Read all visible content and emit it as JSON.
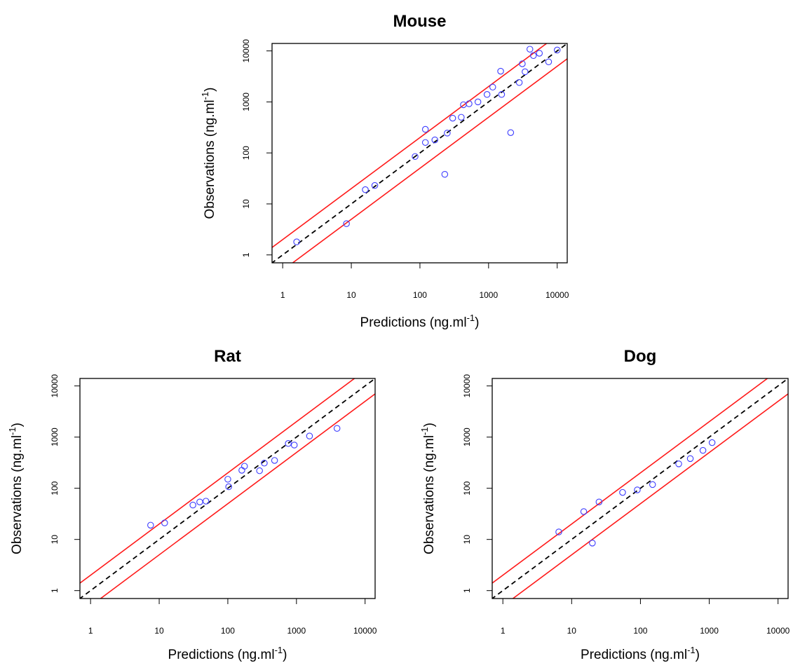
{
  "colors": {
    "points": "#3c3cff",
    "bands": "#ff1a1a",
    "identity": "#000000"
  },
  "chart_data": [
    {
      "type": "scatter",
      "title": "Mouse",
      "xlabel": "Predictions (ng.ml",
      "ylabel": "Observations (ng.ml",
      "unit_exponent": "-1",
      "xlabel_close": ")",
      "ylabel_close": ")",
      "xscale": "log",
      "yscale": "log",
      "xlim": [
        0.7,
        14000
      ],
      "ylim": [
        0.7,
        14000
      ],
      "xticks": [
        1,
        10,
        100,
        1000,
        10000
      ],
      "yticks": [
        1,
        10,
        100,
        1000,
        10000
      ],
      "tick_labels": [
        "1",
        "10",
        "100",
        "1000",
        "10000"
      ],
      "reference_lines": [
        {
          "style": "dashed",
          "color": "#000000",
          "factor": 1
        },
        {
          "style": "solid",
          "color": "#ff1a1a",
          "factor": 2
        },
        {
          "style": "solid",
          "color": "#ff1a1a",
          "factor": 0.5
        }
      ],
      "points": [
        [
          1.6,
          1.8
        ],
        [
          8.5,
          4.1
        ],
        [
          16,
          19
        ],
        [
          22,
          23
        ],
        [
          85,
          85
        ],
        [
          120,
          290
        ],
        [
          120,
          160
        ],
        [
          165,
          180
        ],
        [
          230,
          38
        ],
        [
          250,
          245
        ],
        [
          300,
          480
        ],
        [
          400,
          500
        ],
        [
          430,
          880
        ],
        [
          520,
          920
        ],
        [
          700,
          1000
        ],
        [
          950,
          1400
        ],
        [
          1150,
          1950
        ],
        [
          1500,
          4000
        ],
        [
          1550,
          1400
        ],
        [
          2100,
          250
        ],
        [
          2800,
          2400
        ],
        [
          3100,
          5600
        ],
        [
          3400,
          3900
        ],
        [
          4000,
          10800
        ],
        [
          4500,
          8100
        ],
        [
          5500,
          9000
        ],
        [
          7500,
          6100
        ],
        [
          10000,
          10400
        ]
      ]
    },
    {
      "type": "scatter",
      "title": "Rat",
      "xlabel": "Predictions (ng.ml",
      "ylabel": "Observations (ng.ml",
      "unit_exponent": "-1",
      "xlabel_close": ")",
      "ylabel_close": ")",
      "xscale": "log",
      "yscale": "log",
      "xlim": [
        0.7,
        14000
      ],
      "ylim": [
        0.7,
        14000
      ],
      "xticks": [
        1,
        10,
        100,
        1000,
        10000
      ],
      "yticks": [
        1,
        10,
        100,
        1000,
        10000
      ],
      "tick_labels": [
        "1",
        "10",
        "100",
        "1000",
        "10000"
      ],
      "reference_lines": [
        {
          "style": "dashed",
          "color": "#000000",
          "factor": 1
        },
        {
          "style": "solid",
          "color": "#ff1a1a",
          "factor": 2
        },
        {
          "style": "solid",
          "color": "#ff1a1a",
          "factor": 0.5
        }
      ],
      "points": [
        [
          7.5,
          19
        ],
        [
          12,
          21
        ],
        [
          31,
          47
        ],
        [
          39,
          54
        ],
        [
          48,
          56
        ],
        [
          100,
          150
        ],
        [
          103,
          107
        ],
        [
          160,
          225
        ],
        [
          175,
          270
        ],
        [
          290,
          220
        ],
        [
          340,
          310
        ],
        [
          480,
          350
        ],
        [
          760,
          750
        ],
        [
          930,
          700
        ],
        [
          1550,
          1050
        ],
        [
          3900,
          1480
        ]
      ]
    },
    {
      "type": "scatter",
      "title": "Dog",
      "xlabel": "Predictions (ng.ml",
      "ylabel": "Observations (ng.ml",
      "unit_exponent": "-1",
      "xlabel_close": ")",
      "ylabel_close": ")",
      "xscale": "log",
      "yscale": "log",
      "xlim": [
        0.7,
        14000
      ],
      "ylim": [
        0.7,
        14000
      ],
      "xticks": [
        1,
        10,
        100,
        1000,
        10000
      ],
      "yticks": [
        1,
        10,
        100,
        1000,
        10000
      ],
      "tick_labels": [
        "1",
        "10",
        "100",
        "1000",
        "10000"
      ],
      "reference_lines": [
        {
          "style": "dashed",
          "color": "#000000",
          "factor": 1
        },
        {
          "style": "solid",
          "color": "#ff1a1a",
          "factor": 2
        },
        {
          "style": "solid",
          "color": "#ff1a1a",
          "factor": 0.5
        }
      ],
      "points": [
        [
          6.5,
          14
        ],
        [
          15,
          35
        ],
        [
          20,
          8.5
        ],
        [
          25,
          54
        ],
        [
          55,
          83
        ],
        [
          90,
          93
        ],
        [
          150,
          118
        ],
        [
          360,
          300
        ],
        [
          530,
          380
        ],
        [
          810,
          550
        ],
        [
          1100,
          780
        ]
      ]
    }
  ]
}
